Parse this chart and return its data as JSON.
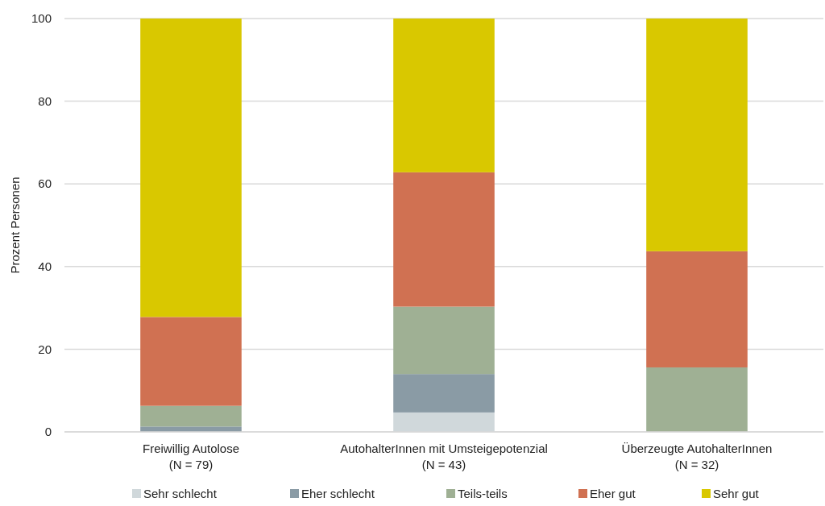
{
  "chart_data": {
    "type": "bar",
    "stacked": true,
    "ylabel": "Prozent Personen",
    "categories": [
      "Freiwillig Autolose\n(N = 79)",
      "AutohalterInnen mit Umsteigepotenzial\n(N = 43)",
      "Überzeugte AutohalterInnen\n(N = 32)"
    ],
    "series": [
      {
        "name": "Sehr schlecht",
        "color": "#d0d8db",
        "values": [
          0,
          4.7,
          0
        ]
      },
      {
        "name": "Eher schlecht",
        "color": "#8a9ba5",
        "values": [
          1.3,
          9.3,
          0
        ]
      },
      {
        "name": "Teils-teils",
        "color": "#9fb094",
        "values": [
          5.0,
          16.3,
          15.6
        ]
      },
      {
        "name": "Eher gut",
        "color": "#d07152",
        "values": [
          21.5,
          32.5,
          28.1
        ]
      },
      {
        "name": "Sehr gut",
        "color": "#d9c800",
        "values": [
          72.2,
          37.2,
          56.3
        ]
      }
    ],
    "ylim": [
      0,
      100
    ],
    "yticks": [
      0,
      20,
      40,
      60,
      80,
      100
    ],
    "grid": "y",
    "legend": "bottom"
  }
}
